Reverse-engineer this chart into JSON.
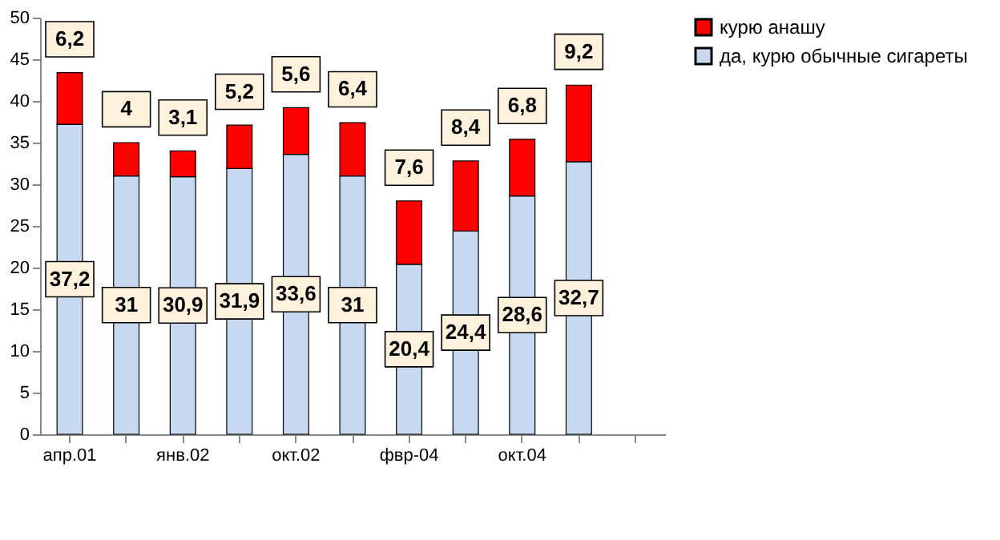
{
  "chart_data": {
    "type": "bar",
    "stacked": true,
    "categories": [
      "апр.01",
      null,
      "янв.02",
      null,
      "окт.02",
      null,
      "фвр-04",
      null,
      "окт.04",
      null,
      null
    ],
    "series": [
      {
        "name": "да, курю обычные сигареты",
        "color": "#c6d9f0",
        "values": [
          37.2,
          31,
          30.9,
          31.9,
          33.6,
          31,
          20.4,
          24.4,
          28.6,
          32.7,
          null
        ],
        "value_labels": [
          "37,2",
          "31",
          "30,9",
          "31,9",
          "33,6",
          "31",
          "20,4",
          "24,4",
          "28,6",
          "32,7",
          null
        ]
      },
      {
        "name": "курю анашу",
        "color": "#ff0000",
        "values": [
          6.2,
          4,
          3.1,
          5.2,
          5.6,
          6.4,
          7.6,
          8.4,
          6.8,
          9.2,
          null
        ],
        "value_labels": [
          "6,2",
          "4",
          "3,1",
          "5,2",
          "5,6",
          "6,4",
          "7,6",
          "8,4",
          "6,8",
          "9,2",
          null
        ]
      }
    ],
    "ylim": [
      0,
      50
    ],
    "yticks": [
      0,
      5,
      10,
      15,
      20,
      25,
      30,
      35,
      40,
      45,
      50
    ],
    "grid": false,
    "legend": "right"
  }
}
